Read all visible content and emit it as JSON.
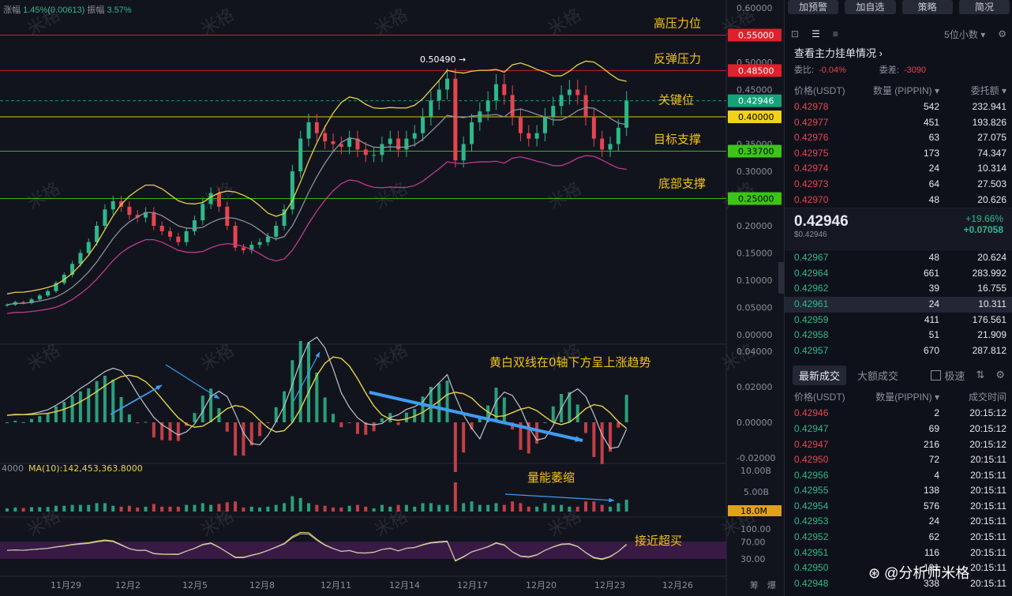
{
  "info": {
    "change_label": "涨幅",
    "change": "1.45%(0.00613)",
    "amp_label": "振幅",
    "amp": "3.57%"
  },
  "chart_data": {
    "type": "line",
    "price_axis": [
      "0.60000",
      "0.55000",
      "0.50000",
      "0.45000",
      "0.40000",
      "0.35000",
      "0.30000",
      "0.25000",
      "0.20000",
      "0.15000",
      "0.10000",
      "0.05000",
      "0.00000"
    ],
    "level_tags": [
      {
        "label": "0.55000",
        "value": 0.55,
        "color": "#e0202c"
      },
      {
        "label": "0.48500",
        "value": 0.485,
        "color": "#e0202c"
      },
      {
        "label": "0.42946",
        "value": 0.42946,
        "color": "#16a37a"
      },
      {
        "label": "0.40000",
        "value": 0.4,
        "color": "#f2d11b"
      },
      {
        "label": "0.33700",
        "value": 0.337,
        "color": "#3cc514"
      },
      {
        "label": "0.25000",
        "value": 0.25,
        "color": "#3cc514"
      }
    ],
    "level_names": [
      "高压力位",
      "反弹压力",
      "关键位",
      "目标支撑",
      "底部支撑"
    ],
    "max_marker": "0.50490",
    "x_ticks": [
      "11月29",
      "12月2",
      "12月5",
      "12月8",
      "12月11",
      "12月14",
      "12月17",
      "12月20",
      "12月23",
      "12月26"
    ],
    "macd_axis": [
      "0.04000",
      "0.02000",
      "0.00000",
      "-0.02000"
    ],
    "macd_note": "黄白双线在0轴下方呈上涨趋势",
    "vol_label": "MA(10):142,453,363.8000",
    "vol_left": "4000",
    "vol_axis": [
      "10.00B",
      "5.00B"
    ],
    "vol_tag": "18.0M",
    "vol_note": "量能萎缩",
    "rsi_axis": [
      "100.00",
      "70.00",
      "30.00"
    ],
    "rsi_note": "接近超买",
    "corner_labels": [
      "筹",
      "爆"
    ],
    "watermark": "米格",
    "close_series": [
      0.055,
      0.06,
      0.058,
      0.065,
      0.072,
      0.08,
      0.095,
      0.11,
      0.13,
      0.15,
      0.17,
      0.2,
      0.23,
      0.245,
      0.235,
      0.22,
      0.215,
      0.225,
      0.2,
      0.19,
      0.18,
      0.17,
      0.19,
      0.21,
      0.24,
      0.26,
      0.235,
      0.2,
      0.16,
      0.155,
      0.165,
      0.17,
      0.18,
      0.2,
      0.23,
      0.3,
      0.36,
      0.39,
      0.37,
      0.355,
      0.35,
      0.345,
      0.36,
      0.34,
      0.33,
      0.33,
      0.35,
      0.36,
      0.34,
      0.36,
      0.37,
      0.4,
      0.43,
      0.45,
      0.47,
      0.32,
      0.35,
      0.39,
      0.41,
      0.43,
      0.46,
      0.44,
      0.4,
      0.37,
      0.36,
      0.37,
      0.4,
      0.42,
      0.44,
      0.45,
      0.44,
      0.4,
      0.36,
      0.34,
      0.35,
      0.38,
      0.43
    ]
  },
  "side": {
    "buttons": [
      "加预警",
      "加自选",
      "策略",
      "简况"
    ],
    "decimals": "5位小数",
    "pending_title": "查看主力挂单情况",
    "wb_label": "委比:",
    "wb": "-0.04%",
    "wc_label": "委差:",
    "wc": "-3090",
    "ob_cols": [
      "价格(USDT)",
      "数量 (PIPPIN)",
      "委托额"
    ],
    "asks": [
      {
        "p": "0.42978",
        "q": "542",
        "a": "232.941"
      },
      {
        "p": "0.42977",
        "q": "451",
        "a": "193.826"
      },
      {
        "p": "0.42976",
        "q": "63",
        "a": "27.075"
      },
      {
        "p": "0.42975",
        "q": "173",
        "a": "74.347"
      },
      {
        "p": "0.42974",
        "q": "24",
        "a": "10.314"
      },
      {
        "p": "0.42973",
        "q": "64",
        "a": "27.503"
      },
      {
        "p": "0.42970",
        "q": "48",
        "a": "20.626"
      }
    ],
    "last_price": "0.42946",
    "last_sub": "$0.42946",
    "pct": "+19.66%",
    "abs_chg": "+0.07058",
    "bids": [
      {
        "p": "0.42967",
        "q": "48",
        "a": "20.624"
      },
      {
        "p": "0.42964",
        "q": "661",
        "a": "283.992"
      },
      {
        "p": "0.42962",
        "q": "39",
        "a": "16.755"
      },
      {
        "p": "0.42961",
        "q": "24",
        "a": "10.311"
      },
      {
        "p": "0.42959",
        "q": "411",
        "a": "176.561"
      },
      {
        "p": "0.42958",
        "q": "51",
        "a": "21.909"
      },
      {
        "p": "0.42957",
        "q": "670",
        "a": "287.812"
      }
    ],
    "tab_latest": "最新成交",
    "tab_large": "大额成交",
    "fast": "极速",
    "tr_cols": [
      "价格(USDT)",
      "数量(PIPPIN)",
      "成交时间"
    ],
    "trades": [
      {
        "p": "0.42946",
        "q": "2",
        "t": "20:15:12",
        "side": "sell"
      },
      {
        "p": "0.42947",
        "q": "69",
        "t": "20:15:12",
        "side": "buy"
      },
      {
        "p": "0.42947",
        "q": "216",
        "t": "20:15:12",
        "side": "sell"
      },
      {
        "p": "0.42950",
        "q": "72",
        "t": "20:15:11",
        "side": "sell"
      },
      {
        "p": "0.42956",
        "q": "4",
        "t": "20:15:11",
        "side": "buy"
      },
      {
        "p": "0.42955",
        "q": "138",
        "t": "20:15:11",
        "side": "buy"
      },
      {
        "p": "0.42954",
        "q": "576",
        "t": "20:15:11",
        "side": "buy"
      },
      {
        "p": "0.42953",
        "q": "24",
        "t": "20:15:11",
        "side": "buy"
      },
      {
        "p": "0.42952",
        "q": "62",
        "t": "20:15:11",
        "side": "buy"
      },
      {
        "p": "0.42951",
        "q": "116",
        "t": "20:15:11",
        "side": "buy"
      },
      {
        "p": "0.42950",
        "q": "191",
        "t": "20:15:11",
        "side": "buy"
      },
      {
        "p": "0.42948",
        "q": "338",
        "t": "20:15:11",
        "side": "buy"
      }
    ],
    "wm_text": "分析师米格"
  }
}
